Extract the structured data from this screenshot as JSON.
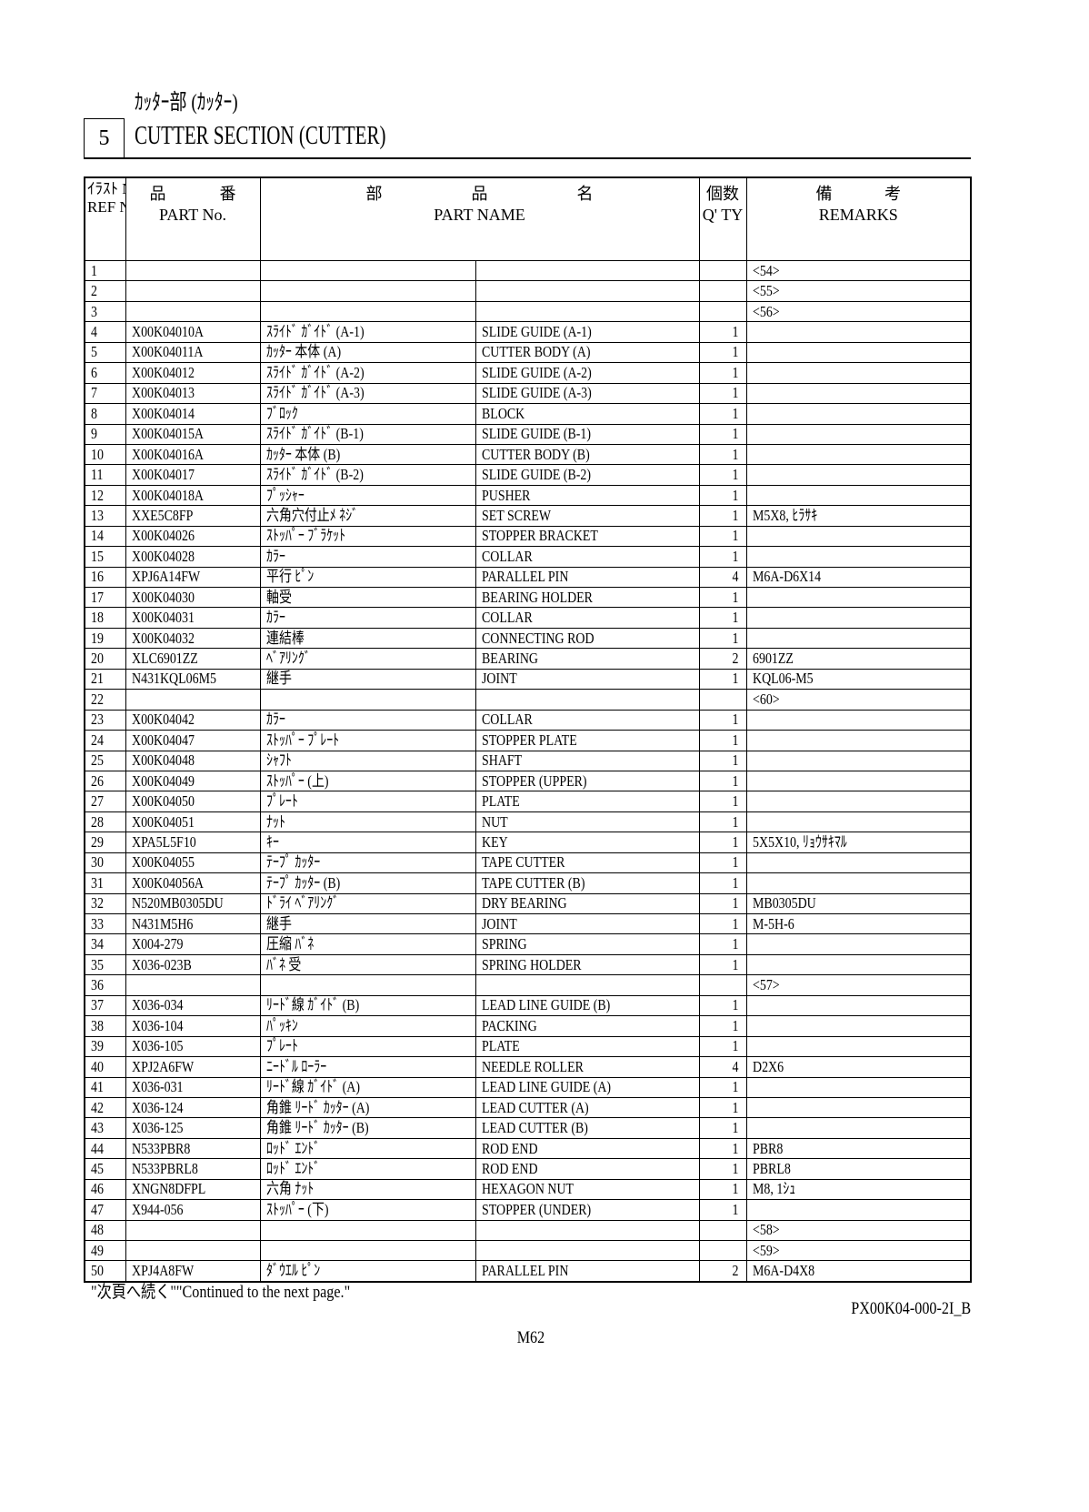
{
  "header": {
    "title_jp": "ｶｯﾀｰ部 (ｶｯﾀｰ)",
    "section_no": "5",
    "title_en": "CUTTER SECTION (CUTTER)"
  },
  "columns": {
    "ref_jp": "ｲﾗｽﾄ No.",
    "ref_en": "REF No.",
    "partno_jp": [
      "品",
      "番"
    ],
    "partno_en": "PART No.",
    "name_jp": [
      "部",
      "品",
      "名"
    ],
    "name_en": "PART NAME",
    "qty_jp": "個数",
    "qty_en": "Q' TY",
    "remarks_jp": [
      "備",
      "考"
    ],
    "remarks_en": "REMARKS"
  },
  "rows": [
    [
      "1",
      "",
      "",
      "",
      "",
      "<54>"
    ],
    [
      "2",
      "",
      "",
      "",
      "",
      "<55>"
    ],
    [
      "3",
      "",
      "",
      "",
      "",
      "<56>"
    ],
    [
      "4",
      "X00K04010A",
      "ｽﾗｲﾄﾞ ｶﾞｲﾄﾞ (A-1)",
      "SLIDE GUIDE (A-1)",
      "1",
      ""
    ],
    [
      "5",
      "X00K04011A",
      "ｶｯﾀｰ 本体 (A)",
      "CUTTER BODY (A)",
      "1",
      ""
    ],
    [
      "6",
      "X00K04012",
      "ｽﾗｲﾄﾞ ｶﾞｲﾄﾞ (A-2)",
      "SLIDE GUIDE (A-2)",
      "1",
      ""
    ],
    [
      "7",
      "X00K04013",
      "ｽﾗｲﾄﾞ ｶﾞｲﾄﾞ (A-3)",
      "SLIDE GUIDE (A-3)",
      "1",
      ""
    ],
    [
      "8",
      "X00K04014",
      "ﾌﾞﾛｯｸ",
      "BLOCK",
      "1",
      ""
    ],
    [
      "9",
      "X00K04015A",
      "ｽﾗｲﾄﾞ ｶﾞｲﾄﾞ (B-1)",
      "SLIDE GUIDE (B-1)",
      "1",
      ""
    ],
    [
      "10",
      "X00K04016A",
      "ｶｯﾀｰ 本体 (B)",
      "CUTTER BODY (B)",
      "1",
      ""
    ],
    [
      "11",
      "X00K04017",
      "ｽﾗｲﾄﾞ ｶﾞｲﾄﾞ (B-2)",
      "SLIDE GUIDE (B-2)",
      "1",
      ""
    ],
    [
      "12",
      "X00K04018A",
      "ﾌﾟｯｼｬｰ",
      "PUSHER",
      "1",
      ""
    ],
    [
      "13",
      "XXE5C8FP",
      "六角穴付止ﾒ ﾈｼﾞ",
      "SET SCREW",
      "1",
      "M5X8, ﾋﾗｻｷ"
    ],
    [
      "14",
      "X00K04026",
      "ｽﾄｯﾊﾟｰ ﾌﾞﾗｹｯﾄ",
      "STOPPER BRACKET",
      "1",
      ""
    ],
    [
      "15",
      "X00K04028",
      "ｶﾗｰ",
      "COLLAR",
      "1",
      ""
    ],
    [
      "16",
      "XPJ6A14FW",
      "平行 ﾋﾟﾝ",
      "PARALLEL PIN",
      "4",
      "M6A-D6X14"
    ],
    [
      "17",
      "X00K04030",
      "軸受",
      "BEARING HOLDER",
      "1",
      ""
    ],
    [
      "18",
      "X00K04031",
      "ｶﾗｰ",
      "COLLAR",
      "1",
      ""
    ],
    [
      "19",
      "X00K04032",
      "連結棒",
      "CONNECTING ROD",
      "1",
      ""
    ],
    [
      "20",
      "XLC6901ZZ",
      "ﾍﾞｱﾘﾝｸﾞ",
      "BEARING",
      "2",
      "6901ZZ"
    ],
    [
      "21",
      "N431KQL06M5",
      "継手",
      "JOINT",
      "1",
      "KQL06-M5"
    ],
    [
      "22",
      "",
      "",
      "",
      "",
      "<60>"
    ],
    [
      "23",
      "X00K04042",
      "ｶﾗｰ",
      "COLLAR",
      "1",
      ""
    ],
    [
      "24",
      "X00K04047",
      "ｽﾄｯﾊﾟｰ ﾌﾟﾚｰﾄ",
      "STOPPER PLATE",
      "1",
      ""
    ],
    [
      "25",
      "X00K04048",
      "ｼｬﾌﾄ",
      "SHAFT",
      "1",
      ""
    ],
    [
      "26",
      "X00K04049",
      "ｽﾄｯﾊﾟｰ (上)",
      "STOPPER (UPPER)",
      "1",
      ""
    ],
    [
      "27",
      "X00K04050",
      "ﾌﾟﾚｰﾄ",
      "PLATE",
      "1",
      ""
    ],
    [
      "28",
      "X00K04051",
      "ﾅｯﾄ",
      "NUT",
      "1",
      ""
    ],
    [
      "29",
      "XPA5L5F10",
      "ｷｰ",
      "KEY",
      "1",
      "5X5X10, ﾘｮｳｻｷﾏﾙ"
    ],
    [
      "30",
      "X00K04055",
      "ﾃｰﾌﾟ ｶｯﾀｰ",
      "TAPE CUTTER",
      "1",
      ""
    ],
    [
      "31",
      "X00K04056A",
      "ﾃｰﾌﾟ ｶｯﾀｰ (B)",
      "TAPE CUTTER (B)",
      "1",
      ""
    ],
    [
      "32",
      "N520MB0305DU",
      "ﾄﾞﾗｲ ﾍﾞｱﾘﾝｸﾞ",
      "DRY BEARING",
      "1",
      "MB0305DU"
    ],
    [
      "33",
      "N431M5H6",
      "継手",
      "JOINT",
      "1",
      "M-5H-6"
    ],
    [
      "34",
      "X004-279",
      "圧縮 ﾊﾞﾈ",
      "SPRING",
      "1",
      ""
    ],
    [
      "35",
      "X036-023B",
      "ﾊﾞﾈ 受",
      "SPRING HOLDER",
      "1",
      ""
    ],
    [
      "36",
      "",
      "",
      "",
      "",
      "<57>"
    ],
    [
      "37",
      "X036-034",
      "ﾘｰﾄﾞ線 ｶﾞｲﾄﾞ (B)",
      "LEAD LINE GUIDE (B)",
      "1",
      ""
    ],
    [
      "38",
      "X036-104",
      "ﾊﾟｯｷﾝ",
      "PACKING",
      "1",
      ""
    ],
    [
      "39",
      "X036-105",
      "ﾌﾟﾚｰﾄ",
      "PLATE",
      "1",
      ""
    ],
    [
      "40",
      "XPJ2A6FW",
      "ﾆｰﾄﾞﾙ ﾛｰﾗｰ",
      "NEEDLE ROLLER",
      "4",
      "D2X6"
    ],
    [
      "41",
      "X036-031",
      "ﾘｰﾄﾞ線 ｶﾞｲﾄﾞ (A)",
      "LEAD LINE GUIDE (A)",
      "1",
      ""
    ],
    [
      "42",
      "X036-124",
      "角錐 ﾘｰﾄﾞ ｶｯﾀｰ (A)",
      "LEAD CUTTER (A)",
      "1",
      ""
    ],
    [
      "43",
      "X036-125",
      "角錐 ﾘｰﾄﾞ ｶｯﾀｰ (B)",
      "LEAD CUTTER (B)",
      "1",
      ""
    ],
    [
      "44",
      "N533PBR8",
      "ﾛｯﾄﾞ ｴﾝﾄﾞ",
      "ROD END",
      "1",
      "PBR8"
    ],
    [
      "45",
      "N533PBRL8",
      "ﾛｯﾄﾞ ｴﾝﾄﾞ",
      "ROD END",
      "1",
      "PBRL8"
    ],
    [
      "46",
      "XNGN8DFPL",
      "六角 ﾅｯﾄ",
      "HEXAGON NUT",
      "1",
      "M8, 1ｼｭ"
    ],
    [
      "47",
      "X944-056",
      "ｽﾄｯﾊﾟｰ (下)",
      "STOPPER (UNDER)",
      "1",
      ""
    ],
    [
      "48",
      "",
      "",
      "",
      "",
      "<58>"
    ],
    [
      "49",
      "",
      "",
      "",
      "",
      "<59>"
    ],
    [
      "50",
      "XPJ4A8FW",
      "ﾀﾞｳｴﾙ ﾋﾟﾝ",
      "PARALLEL PIN",
      "2",
      "M6A-D4X8"
    ]
  ],
  "footer": {
    "continued": "\"次頁へ続く\"\"Continued to the next page.\"",
    "doc_no": "PX00K04-000-2I_B",
    "page": "M62"
  }
}
